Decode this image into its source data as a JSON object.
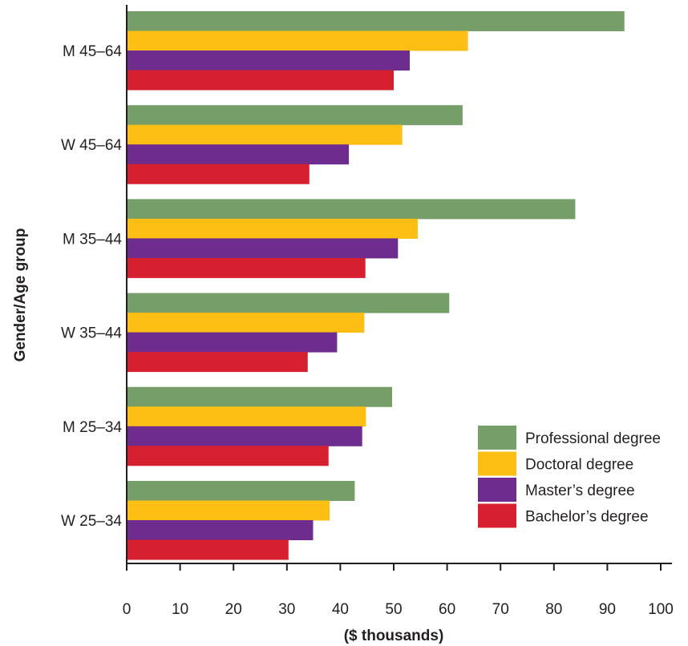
{
  "chart_data": {
    "type": "bar",
    "orientation": "horizontal",
    "title": "",
    "xlabel": "($ thousands)",
    "ylabel": "Gender/Age group",
    "xlim": [
      0,
      100
    ],
    "xticks": [
      "0",
      "10",
      "20",
      "30",
      "40",
      "50",
      "60",
      "70",
      "80",
      "90",
      "100"
    ],
    "categories": [
      "M 45–64",
      "W 45–64",
      "M 35–44",
      "W 35–44",
      "M 25–34",
      "W 25–34"
    ],
    "series": [
      {
        "name": "Professional degree",
        "color": "#769e69",
        "values": [
          93.2,
          62.9,
          84.0,
          60.4,
          49.7,
          42.7
        ]
      },
      {
        "name": "Doctoral degree",
        "color": "#fdbf13",
        "values": [
          63.9,
          51.6,
          54.5,
          44.5,
          44.8,
          38.0
        ]
      },
      {
        "name": "Master’s degree",
        "color": "#6e2c8e",
        "values": [
          53.0,
          41.6,
          50.8,
          39.4,
          44.1,
          34.9
        ]
      },
      {
        "name": "Bachelor’s degree",
        "color": "#d7202f",
        "values": [
          50.0,
          34.2,
          44.7,
          33.9,
          37.8,
          30.3
        ]
      }
    ],
    "grid": false,
    "legend_position": "bottom-right"
  }
}
